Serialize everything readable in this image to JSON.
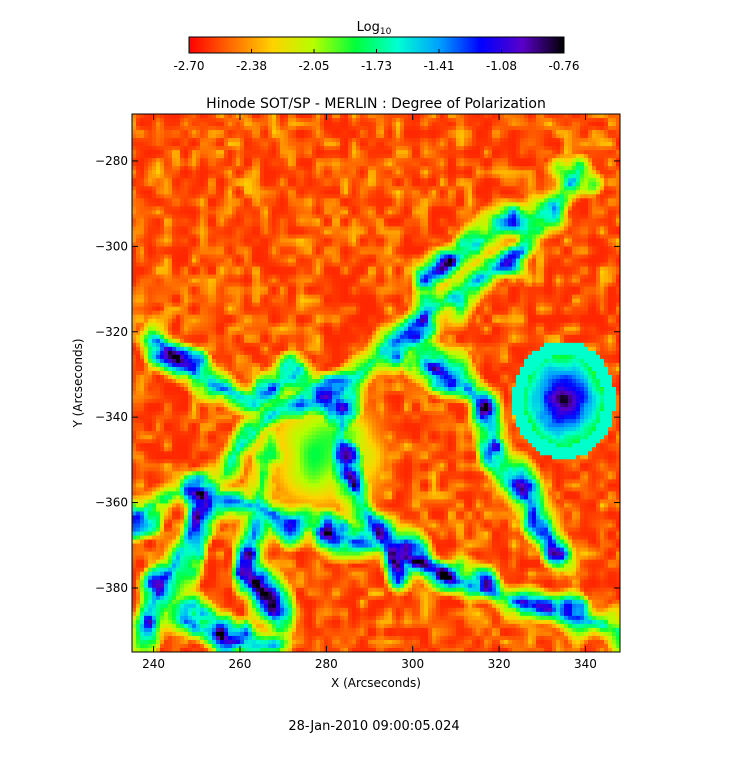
{
  "colorbar": {
    "title": "Log",
    "title_sub": "10",
    "ticks": [
      "-2.70",
      "-2.38",
      "-2.05",
      "-1.73",
      "-1.41",
      "-1.08",
      "-0.76"
    ],
    "range": [
      -2.7,
      -0.76
    ],
    "colormap": [
      "#ff0000",
      "#ff6a00",
      "#ffd200",
      "#b4ff00",
      "#00ff3c",
      "#00ffd2",
      "#00a0ff",
      "#0000ff",
      "#5a00c8",
      "#000000"
    ]
  },
  "chart_data": {
    "type": "heatmap",
    "title": "Hinode SOT/SP - MERLIN : Degree of Polarization",
    "xlabel": "X (Arcseconds)",
    "ylabel": "Y (Arcseconds)",
    "xlim": [
      235,
      348
    ],
    "ylim": [
      -395,
      -269
    ],
    "xticks": [
      240,
      260,
      280,
      300,
      320,
      340
    ],
    "yticks": [
      -280,
      -300,
      -320,
      -340,
      -360,
      -380
    ],
    "value_unit": "log10 degree of polarization",
    "value_range": [
      -2.7,
      -0.76
    ],
    "features": [
      {
        "kind": "sunspot",
        "x": 335,
        "y": -336,
        "value": -0.76
      },
      {
        "kind": "network",
        "value": -1.41
      }
    ]
  },
  "timestamp": "28-Jan-2010 09:00:05.024"
}
